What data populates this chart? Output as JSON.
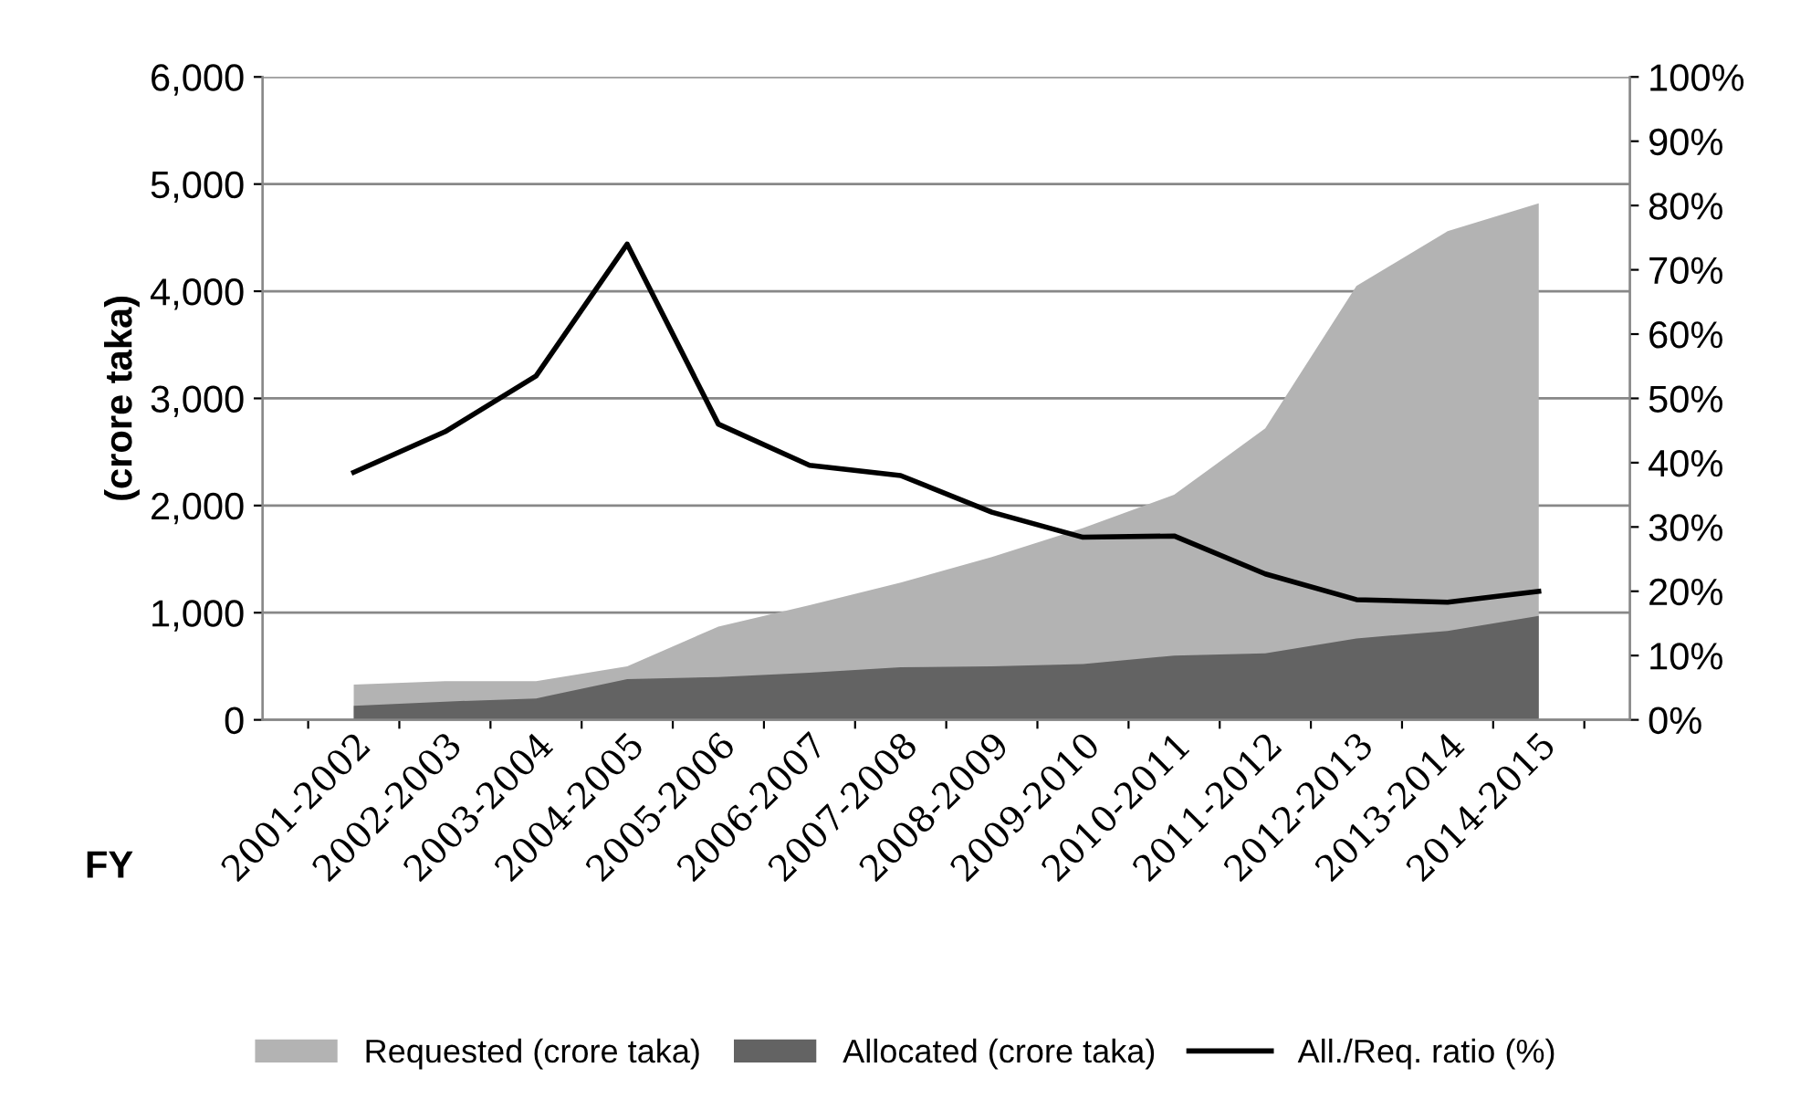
{
  "chart_data": {
    "type": "area",
    "xlabel": "FY",
    "ylabel": "(crore taka)",
    "categories": [
      "2001-2002",
      "2002-2003",
      "2003-2004",
      "2004-2005",
      "2005-2006",
      "2006-2007",
      "2007-2008",
      "2008-2009",
      "2009-2010",
      "2010-2011",
      "2011-2012",
      "2012-2013",
      "2013-2014",
      "2014-2015"
    ],
    "series": [
      {
        "name": "Requested (crore taka)",
        "color": "#b3b3b3",
        "values": [
          330,
          360,
          360,
          500,
          870,
          1070,
          1280,
          1520,
          1790,
          2100,
          2720,
          4050,
          4560,
          4820
        ]
      },
      {
        "name": "Allocated (crore taka)",
        "color": "#636363",
        "values": [
          130,
          170,
          200,
          380,
          400,
          440,
          490,
          500,
          520,
          600,
          620,
          760,
          830,
          970
        ]
      },
      {
        "name": "All./Req. ratio (%)",
        "type": "line",
        "axis": "y2",
        "color": "#000000",
        "values": [
          38.5,
          44.8,
          53.5,
          74,
          46,
          39.6,
          38,
          32.3,
          28.4,
          28.6,
          22.7,
          18.7,
          18.3,
          20
        ]
      }
    ],
    "ylim": [
      0,
      6000
    ],
    "yticks": [
      0,
      {
        "value": 1000,
        "label": "1,000"
      },
      {
        "value": 2000,
        "label": "2,000"
      },
      {
        "value": 3000,
        "label": "3,000"
      },
      {
        "value": 4000,
        "label": "4,000"
      },
      {
        "value": 5000,
        "label": "5,000"
      },
      {
        "value": 6000,
        "label": "6,000"
      }
    ],
    "y2lim": [
      0,
      100
    ],
    "y2ticks": [
      {
        "value": 0,
        "label": "0%"
      },
      {
        "value": 10,
        "label": "10%"
      },
      {
        "value": 20,
        "label": "20%"
      },
      {
        "value": 30,
        "label": "30%"
      },
      {
        "value": 40,
        "label": "40%"
      },
      {
        "value": 50,
        "label": "50%"
      },
      {
        "value": 60,
        "label": "60%"
      },
      {
        "value": 70,
        "label": "70%"
      },
      {
        "value": 80,
        "label": "80%"
      },
      {
        "value": 90,
        "label": "90%"
      },
      {
        "value": 100,
        "label": "100%"
      }
    ],
    "grid": "y",
    "legend": "bottom",
    "marker": "none",
    "line_style": "solid"
  }
}
